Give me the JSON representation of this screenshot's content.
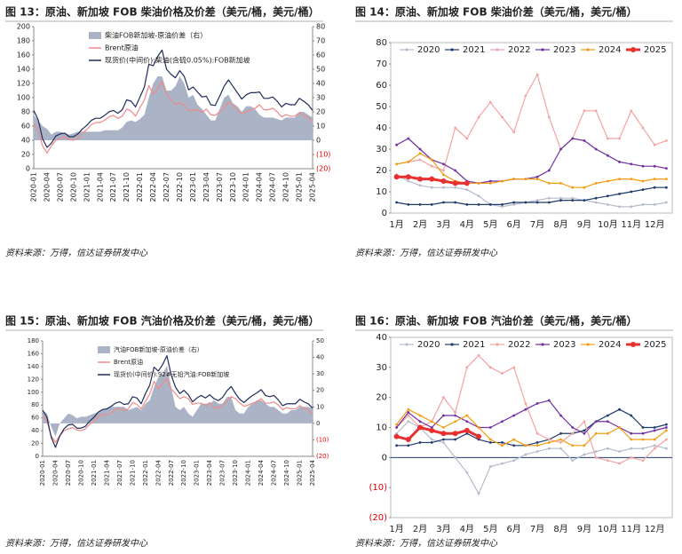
{
  "chart_data": [
    {
      "type": "line",
      "title": "图 13：原油、新加坡 FOB 柴油价格及价差（美元/桶，美元/桶）",
      "source": "资料来源：万得，信达证券研发中心",
      "categories": [
        "2020-01",
        null,
        null,
        "2020-04",
        null,
        null,
        "2020-07",
        null,
        null,
        "2020-10",
        null,
        null,
        "2021-01",
        null,
        null,
        "2021-04",
        null,
        null,
        "2021-07",
        null,
        null,
        "2021-10",
        null,
        null,
        "2022-01",
        null,
        null,
        "2022-04",
        null,
        null,
        "2022-07",
        null,
        null,
        "2022-10",
        null,
        null,
        "2023-01",
        null,
        null,
        "2023-04",
        null,
        null,
        "2023-07",
        null,
        null,
        "2023-10",
        null,
        null,
        "2024-01",
        null,
        null,
        "2024-04",
        null,
        null,
        "2024-07",
        null,
        null,
        "2024-10",
        null,
        null,
        "2025-01",
        null,
        null,
        "2025-04"
      ],
      "ylim": [
        0,
        200
      ],
      "yticks": [
        0,
        20,
        40,
        60,
        80,
        100,
        120,
        140,
        160,
        180,
        200
      ],
      "y2lim": [
        -20,
        80
      ],
      "y2ticks": [
        {
          "value": -20,
          "label": "(20)"
        },
        {
          "value": -10,
          "label": "(10)"
        },
        0,
        10,
        20,
        30,
        40,
        50,
        60,
        70,
        80
      ],
      "negative_tick_color": "#e00000",
      "legend": "upper left",
      "grid": false,
      "series": [
        {
          "name": "柴油FOB新加坡-原油价差（右）",
          "color": "#aab4c6",
          "axis": "y2",
          "style": "area",
          "values": [
            18,
            14,
            10,
            8,
            4,
            6,
            6,
            5,
            4,
            5,
            6,
            6,
            6,
            6,
            6,
            6,
            7,
            7,
            7,
            7,
            9,
            13,
            14,
            13,
            15,
            18,
            30,
            40,
            45,
            45,
            35,
            35,
            38,
            45,
            40,
            30,
            32,
            25,
            22,
            18,
            14,
            14,
            22,
            30,
            32,
            26,
            24,
            20,
            24,
            24,
            22,
            18,
            16,
            16,
            16,
            15,
            14,
            16,
            16,
            16,
            20,
            20,
            18,
            16
          ]
        },
        {
          "name": "Brent原油",
          "color": "#f08a8a",
          "values": [
            64,
            55,
            32,
            22,
            32,
            40,
            43,
            45,
            41,
            40,
            43,
            50,
            55,
            62,
            65,
            65,
            68,
            73,
            75,
            71,
            74,
            84,
            81,
            74,
            86,
            97,
            117,
            105,
            113,
            122,
            105,
            98,
            90,
            93,
            90,
            81,
            83,
            83,
            79,
            84,
            76,
            75,
            80,
            86,
            93,
            90,
            83,
            78,
            80,
            83,
            85,
            90,
            83,
            83,
            85,
            80,
            73,
            76,
            74,
            74,
            79,
            75,
            72,
            66
          ]
        },
        {
          "name": "现货价(中间价):柴油(含硫0.05%):FOB新加坡",
          "color": "#1f2d5c",
          "values": [
            82,
            69,
            42,
            30,
            36,
            46,
            49,
            50,
            45,
            45,
            49,
            56,
            61,
            68,
            71,
            71,
            75,
            80,
            82,
            78,
            83,
            97,
            95,
            87,
            101,
            115,
            147,
            145,
            158,
            167,
            140,
            133,
            128,
            138,
            130,
            111,
            115,
            108,
            101,
            102,
            90,
            89,
            102,
            116,
            125,
            116,
            107,
            98,
            104,
            107,
            107,
            108,
            99,
            99,
            101,
            95,
            87,
            92,
            90,
            90,
            99,
            95,
            90,
            82
          ]
        }
      ]
    },
    {
      "type": "line",
      "title": "图 14：原油、新加坡 FOB 柴油价差（美元/桶，美元/桶）",
      "source": "资料来源：万得，信达证券研发中心",
      "categories": [
        "1月",
        null,
        "2月",
        null,
        "3月",
        null,
        "4月",
        null,
        "5月",
        null,
        "6月",
        null,
        "7月",
        null,
        "8月",
        null,
        "9月",
        null,
        "10月",
        null,
        "11月",
        null,
        "12月",
        null
      ],
      "ylim": [
        0,
        80
      ],
      "yticks": [
        0,
        10,
        20,
        30,
        40,
        50,
        60,
        70,
        80
      ],
      "legend": "top",
      "grid": false,
      "series": [
        {
          "name": "2020",
          "color": "#b4bccb",
          "marker": true,
          "values": [
            18,
            15,
            13,
            12,
            12,
            12,
            11,
            8,
            4,
            3,
            4,
            5,
            6,
            7,
            7,
            7,
            6,
            5,
            4,
            3,
            3,
            4,
            4,
            5
          ]
        },
        {
          "name": "2021",
          "color": "#1f3b6e",
          "marker": true,
          "values": [
            5,
            4,
            4,
            4,
            5,
            5,
            4,
            4,
            4,
            4,
            5,
            5,
            5,
            5,
            6,
            6,
            6,
            7,
            8,
            9,
            10,
            11,
            12,
            12
          ]
        },
        {
          "name": "2022",
          "color": "#f4a3a3",
          "marker": true,
          "values": [
            23,
            24,
            25,
            22,
            20,
            40,
            35,
            45,
            52,
            45,
            38,
            55,
            65,
            45,
            30,
            35,
            48,
            48,
            35,
            35,
            48,
            40,
            32,
            34
          ]
        },
        {
          "name": "2023",
          "color": "#7030a0",
          "marker": true,
          "values": [
            32,
            35,
            30,
            25,
            23,
            20,
            15,
            14,
            15,
            15,
            16,
            16,
            17,
            20,
            30,
            35,
            34,
            30,
            27,
            24,
            23,
            22,
            22,
            21
          ]
        },
        {
          "name": "2024",
          "color": "#f39c12",
          "marker": true,
          "values": [
            23,
            24,
            28,
            25,
            18,
            15,
            14,
            14,
            14,
            15,
            16,
            16,
            16,
            14,
            14,
            12,
            12,
            14,
            15,
            16,
            16,
            15,
            16,
            16
          ]
        },
        {
          "name": "2025",
          "color": "#e83030",
          "marker": true,
          "line_width": 3,
          "values": [
            17,
            17,
            16,
            16,
            15,
            14,
            14,
            null,
            null,
            null,
            null,
            null,
            null,
            null,
            null,
            null,
            null,
            null,
            null,
            null,
            null,
            null,
            null,
            null
          ]
        }
      ]
    },
    {
      "type": "line",
      "title": "图 15：原油、新加坡 FOB 汽油价格及价差（美元/桶，美元/桶）",
      "source": "资料来源：万得，信达证券研发中心",
      "categories": [
        "2020-01",
        null,
        null,
        "2020-04",
        null,
        null,
        "2020-07",
        null,
        null,
        "2020-10",
        null,
        null,
        "2021-01",
        null,
        null,
        "2021-04",
        null,
        null,
        "2021-07",
        null,
        null,
        "2021-10",
        null,
        null,
        "2022-01",
        null,
        null,
        "2022-04",
        null,
        null,
        "2022-07",
        null,
        null,
        "2022-10",
        null,
        null,
        "2023-01",
        null,
        null,
        "2023-04",
        null,
        null,
        "2023-07",
        null,
        null,
        "2023-10",
        null,
        null,
        "2024-01",
        null,
        null,
        "2024-04",
        null,
        null,
        "2024-07",
        null,
        null,
        "2024-10",
        null,
        null,
        "2025-01",
        null,
        null,
        "2025-04"
      ],
      "ylim": [
        0,
        180
      ],
      "yticks": [
        0,
        20,
        40,
        60,
        80,
        100,
        120,
        140,
        160,
        180
      ],
      "y2lim": [
        -20,
        50
      ],
      "y2ticks": [
        {
          "value": -20,
          "label": "(20)"
        },
        {
          "value": -10,
          "label": "(10)"
        },
        0,
        10,
        20,
        30,
        40,
        50
      ],
      "negative_tick_color": "#e00000",
      "legend": "upper left",
      "grid": false,
      "series": [
        {
          "name": "汽油FOB新加坡-原油价差（右）",
          "color": "#aab4c6",
          "axis": "y2",
          "style": "area",
          "values": [
            8,
            6,
            -2,
            -8,
            0,
            3,
            6,
            5,
            3,
            4,
            4,
            5,
            6,
            7,
            8,
            9,
            10,
            10,
            10,
            10,
            8,
            9,
            10,
            8,
            12,
            14,
            22,
            28,
            30,
            35,
            22,
            10,
            8,
            10,
            6,
            4,
            8,
            12,
            12,
            12,
            14,
            12,
            12,
            16,
            16,
            8,
            6,
            6,
            10,
            12,
            14,
            14,
            12,
            10,
            10,
            8,
            6,
            6,
            8,
            8,
            10,
            10,
            10,
            9
          ]
        },
        {
          "name": "Brent原油",
          "color": "#f08a8a",
          "values": [
            64,
            55,
            32,
            22,
            32,
            40,
            43,
            45,
            41,
            40,
            43,
            50,
            55,
            62,
            65,
            65,
            68,
            73,
            75,
            71,
            74,
            84,
            81,
            74,
            86,
            97,
            117,
            105,
            113,
            122,
            105,
            98,
            90,
            93,
            90,
            81,
            83,
            83,
            79,
            84,
            76,
            75,
            80,
            86,
            93,
            90,
            83,
            78,
            80,
            83,
            85,
            90,
            83,
            83,
            85,
            80,
            73,
            76,
            74,
            74,
            79,
            75,
            72,
            66
          ]
        },
        {
          "name": "现货价(中间价):92#无铅汽油:FOB新加坡",
          "color": "#1f2d5c",
          "values": [
            72,
            61,
            30,
            14,
            32,
            43,
            49,
            50,
            44,
            44,
            47,
            55,
            61,
            69,
            73,
            74,
            78,
            83,
            85,
            81,
            82,
            93,
            91,
            82,
            98,
            111,
            139,
            133,
            143,
            157,
            127,
            108,
            98,
            103,
            96,
            85,
            91,
            95,
            91,
            96,
            90,
            87,
            92,
            102,
            109,
            98,
            89,
            84,
            90,
            95,
            99,
            104,
            95,
            93,
            95,
            88,
            79,
            82,
            82,
            82,
            89,
            85,
            82,
            75
          ]
        }
      ]
    },
    {
      "type": "line",
      "title": "图 16：原油、新加坡 FOB 汽油价差（美元/桶，美元/桶）",
      "source": "资料来源：万得，信达证券研发中心",
      "categories": [
        "1月",
        null,
        "2月",
        null,
        "3月",
        null,
        "4月",
        null,
        "5月",
        null,
        "6月",
        null,
        "7月",
        null,
        "8月",
        null,
        "9月",
        null,
        "10月",
        null,
        "11月",
        null,
        "12月",
        null
      ],
      "ylim": [
        -20,
        40
      ],
      "yticks": [
        {
          "value": -20,
          "label": "(20)"
        },
        {
          "value": -10,
          "label": "(10)"
        },
        0,
        10,
        20,
        30,
        40
      ],
      "negative_tick_color": "#e00000",
      "zero_line": true,
      "legend": "top",
      "grid": false,
      "series": [
        {
          "name": "2020",
          "color": "#b4bccb",
          "marker": true,
          "values": [
            8,
            12,
            10,
            6,
            5,
            0,
            -5,
            -12,
            -3,
            -2,
            -1,
            1,
            2,
            3,
            3,
            -1,
            1,
            2,
            3,
            2,
            3,
            3,
            4,
            3
          ]
        },
        {
          "name": "2021",
          "color": "#1f3b6e",
          "marker": true,
          "values": [
            4,
            4,
            5,
            5,
            6,
            6,
            8,
            6,
            5,
            5,
            4,
            4,
            5,
            6,
            8,
            8,
            9,
            12,
            14,
            16,
            14,
            10,
            10,
            11
          ]
        },
        {
          "name": "2022",
          "color": "#f4a3a3",
          "marker": true,
          "values": [
            10,
            14,
            10,
            12,
            20,
            15,
            30,
            34,
            30,
            28,
            30,
            18,
            8,
            6,
            5,
            8,
            12,
            0,
            -1,
            -2,
            0,
            -1,
            3,
            6
          ]
        },
        {
          "name": "2023",
          "color": "#7030a0",
          "marker": true,
          "values": [
            10,
            15,
            12,
            10,
            14,
            14,
            12,
            10,
            10,
            12,
            14,
            16,
            18,
            19,
            14,
            10,
            8,
            12,
            12,
            10,
            8,
            8,
            9,
            10
          ]
        },
        {
          "name": "2024",
          "color": "#f39c12",
          "marker": true,
          "values": [
            11,
            16,
            14,
            12,
            10,
            12,
            14,
            10,
            6,
            4,
            6,
            4,
            4,
            5,
            6,
            4,
            4,
            8,
            8,
            10,
            6,
            6,
            6,
            9
          ]
        },
        {
          "name": "2025",
          "color": "#e83030",
          "marker": true,
          "line_width": 3,
          "values": [
            7,
            6,
            10,
            9,
            8,
            8,
            9,
            7,
            null,
            null,
            null,
            null,
            null,
            null,
            null,
            null,
            null,
            null,
            null,
            null,
            null,
            null,
            null,
            null
          ]
        }
      ]
    }
  ]
}
